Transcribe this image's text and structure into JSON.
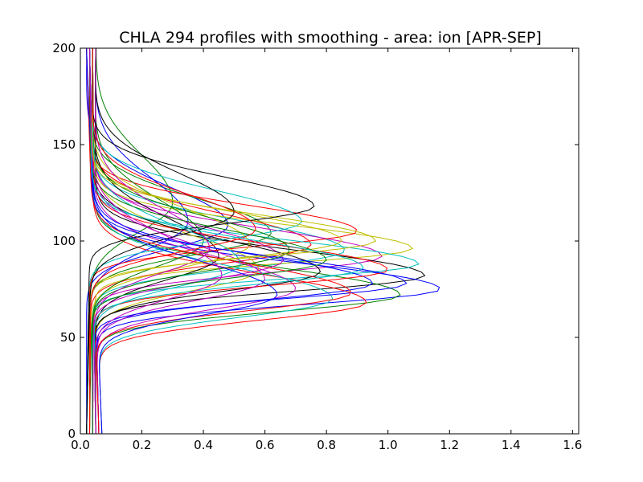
{
  "chart_data": {
    "type": "line",
    "title": "CHLA 294 profiles with smoothing - area: ion [APR-SEP]",
    "xlabel": "",
    "ylabel": "",
    "xlim": [
      0.0,
      1.62
    ],
    "ylim": [
      0,
      200
    ],
    "x_ticks": [
      "0.0",
      "0.2",
      "0.4",
      "0.6",
      "0.8",
      "1.0",
      "1.2",
      "1.4",
      "1.6"
    ],
    "y_ticks": [
      "0",
      "50",
      "100",
      "150",
      "200"
    ],
    "grid": false,
    "legend": "none",
    "profile_count": 294,
    "series_colors": [
      "#0000ff",
      "#008000",
      "#ff0000",
      "#00bfbf",
      "#bf00bf",
      "#bfbf00",
      "#000000"
    ],
    "series": [
      {
        "peak_x": 0.48,
        "peak_y": 108,
        "base_x": 0.02,
        "top_x": 0.02,
        "width": 22
      },
      {
        "peak_x": 0.62,
        "peak_y": 104,
        "base_x": 0.03,
        "top_x": 0.03,
        "width": 20
      },
      {
        "peak_x": 0.75,
        "peak_y": 98,
        "base_x": 0.03,
        "top_x": 0.04,
        "width": 18
      },
      {
        "peak_x": 0.86,
        "peak_y": 95,
        "base_x": 0.04,
        "top_x": 0.04,
        "width": 17
      },
      {
        "peak_x": 0.98,
        "peak_y": 92,
        "base_x": 0.04,
        "top_x": 0.05,
        "width": 16
      },
      {
        "peak_x": 1.08,
        "peak_y": 96,
        "base_x": 0.05,
        "top_x": 0.04,
        "width": 14
      },
      {
        "peak_x": 1.12,
        "peak_y": 82,
        "base_x": 0.05,
        "top_x": 0.05,
        "width": 15
      },
      {
        "peak_x": 1.17,
        "peak_y": 75,
        "base_x": 0.06,
        "top_x": 0.03,
        "width": 15
      },
      {
        "peak_x": 1.04,
        "peak_y": 72,
        "base_x": 0.06,
        "top_x": 0.03,
        "width": 16
      },
      {
        "peak_x": 0.93,
        "peak_y": 68,
        "base_x": 0.07,
        "top_x": 0.02,
        "width": 17
      },
      {
        "peak_x": 0.82,
        "peak_y": 70,
        "base_x": 0.07,
        "top_x": 0.02,
        "width": 18
      },
      {
        "peak_x": 0.7,
        "peak_y": 75,
        "base_x": 0.06,
        "top_x": 0.03,
        "width": 19
      },
      {
        "peak_x": 0.58,
        "peak_y": 85,
        "base_x": 0.05,
        "top_x": 0.03,
        "width": 20
      },
      {
        "peak_x": 0.45,
        "peak_y": 92,
        "base_x": 0.05,
        "top_x": 0.04,
        "width": 22
      },
      {
        "peak_x": 0.35,
        "peak_y": 110,
        "base_x": 0.02,
        "top_x": 0.05,
        "width": 26
      },
      {
        "peak_x": 0.3,
        "peak_y": 120,
        "base_x": 0.02,
        "top_x": 0.05,
        "width": 28
      },
      {
        "peak_x": 0.9,
        "peak_y": 105,
        "base_x": 0.03,
        "top_x": 0.03,
        "width": 15
      },
      {
        "peak_x": 1.1,
        "peak_y": 88,
        "base_x": 0.04,
        "top_x": 0.04,
        "width": 14
      },
      {
        "peak_x": 0.66,
        "peak_y": 90,
        "base_x": 0.04,
        "top_x": 0.04,
        "width": 19
      },
      {
        "peak_x": 0.55,
        "peak_y": 98,
        "base_x": 0.03,
        "top_x": 0.04,
        "width": 21
      },
      {
        "peak_x": 0.78,
        "peak_y": 84,
        "base_x": 0.05,
        "top_x": 0.03,
        "width": 18
      },
      {
        "peak_x": 0.95,
        "peak_y": 78,
        "base_x": 0.06,
        "top_x": 0.03,
        "width": 16
      },
      {
        "peak_x": 0.4,
        "peak_y": 100,
        "base_x": 0.03,
        "top_x": 0.05,
        "width": 24
      },
      {
        "peak_x": 1.0,
        "peak_y": 85,
        "base_x": 0.05,
        "top_x": 0.04,
        "width": 15
      },
      {
        "peak_x": 0.72,
        "peak_y": 110,
        "base_x": 0.02,
        "top_x": 0.04,
        "width": 18
      },
      {
        "peak_x": 0.6,
        "peak_y": 80,
        "base_x": 0.06,
        "top_x": 0.03,
        "width": 20
      },
      {
        "peak_x": 0.85,
        "peak_y": 100,
        "base_x": 0.03,
        "top_x": 0.04,
        "width": 16
      },
      {
        "peak_x": 0.5,
        "peak_y": 115,
        "base_x": 0.02,
        "top_x": 0.05,
        "width": 23
      },
      {
        "peak_x": 1.06,
        "peak_y": 78,
        "base_x": 0.05,
        "top_x": 0.03,
        "width": 15
      },
      {
        "peak_x": 0.68,
        "peak_y": 95,
        "base_x": 0.04,
        "top_x": 0.04,
        "width": 19
      },
      {
        "peak_x": 0.88,
        "peak_y": 73,
        "base_x": 0.06,
        "top_x": 0.02,
        "width": 17
      },
      {
        "peak_x": 0.52,
        "peak_y": 88,
        "base_x": 0.04,
        "top_x": 0.04,
        "width": 21
      },
      {
        "peak_x": 0.42,
        "peak_y": 96,
        "base_x": 0.04,
        "top_x": 0.05,
        "width": 23
      },
      {
        "peak_x": 0.96,
        "peak_y": 100,
        "base_x": 0.03,
        "top_x": 0.04,
        "width": 15
      },
      {
        "peak_x": 0.76,
        "peak_y": 118,
        "base_x": 0.02,
        "top_x": 0.04,
        "width": 17
      },
      {
        "peak_x": 0.64,
        "peak_y": 72,
        "base_x": 0.07,
        "top_x": 0.02,
        "width": 19
      },
      {
        "peak_x": 0.8,
        "peak_y": 90,
        "base_x": 0.04,
        "top_x": 0.03,
        "width": 17
      },
      {
        "peak_x": 0.57,
        "peak_y": 106,
        "base_x": 0.03,
        "top_x": 0.04,
        "width": 20
      },
      {
        "peak_x": 0.92,
        "peak_y": 86,
        "base_x": 0.05,
        "top_x": 0.03,
        "width": 16
      },
      {
        "peak_x": 0.46,
        "peak_y": 82,
        "base_x": 0.05,
        "top_x": 0.03,
        "width": 22
      }
    ]
  }
}
